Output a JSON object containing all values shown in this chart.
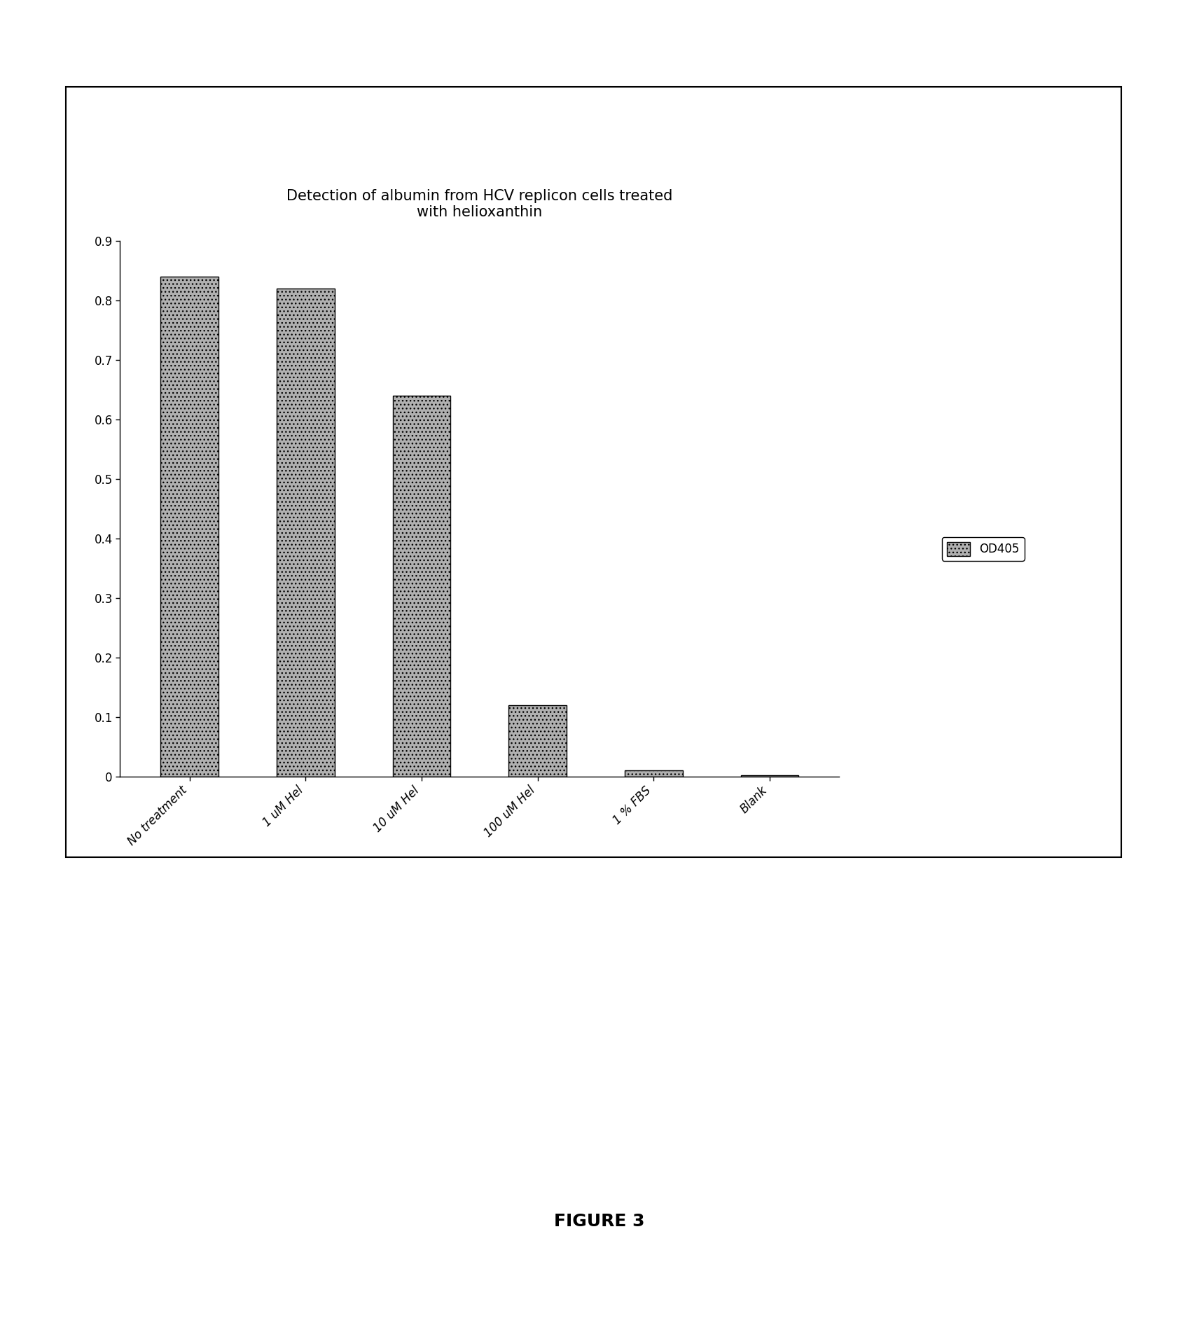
{
  "title": "Detection of albumin from HCV replicon cells treated\nwith helioxanthin",
  "categories": [
    "No treatment",
    "1 uM Hel",
    "10 uM Hel",
    "100 uM Hel",
    "1 % FBS",
    "Blank"
  ],
  "values": [
    0.84,
    0.82,
    0.64,
    0.12,
    0.01,
    0.002
  ],
  "bar_color": "#b0b0b0",
  "bar_edgecolor": "#000000",
  "bar_hatch": "...",
  "ylim": [
    0,
    0.9
  ],
  "yticks": [
    0,
    0.1,
    0.2,
    0.3,
    0.4,
    0.5,
    0.6,
    0.7,
    0.8,
    0.9
  ],
  "legend_label": "OD405",
  "figure_caption": "FIGURE 3",
  "background_color": "#ffffff",
  "title_fontsize": 15,
  "tick_fontsize": 12,
  "legend_fontsize": 12,
  "caption_fontsize": 18,
  "bar_width": 0.5
}
